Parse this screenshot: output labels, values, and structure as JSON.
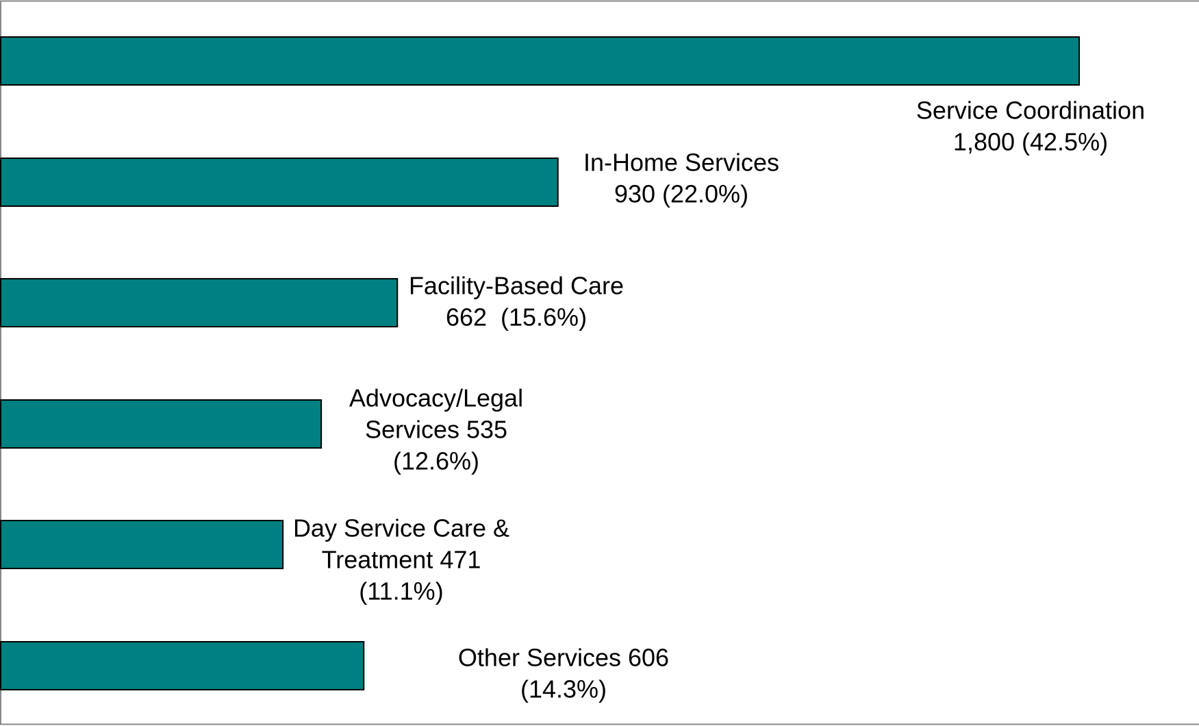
{
  "chart_data": {
    "type": "bar",
    "orientation": "horizontal",
    "color": "#008080",
    "categories": [
      "Service Coordination",
      "In-Home Services",
      "Facility-Based Care",
      "Advocacy/Legal Services",
      "Day Service Care & Treatment",
      "Other Services"
    ],
    "values": [
      1800,
      930,
      662,
      535,
      471,
      606
    ],
    "value_labels": [
      [
        "Service Coordination",
        "1,800 (42.5%)"
      ],
      [
        "In-Home Services",
        "930 (22.0%)"
      ],
      [
        "Facility-Based Care",
        "662  (15.6%)"
      ],
      [
        "Advocacy/Legal",
        "Services 535",
        "(12.6%)"
      ],
      [
        "Day Service Care &",
        "Treatment 471",
        "(11.1%)"
      ],
      [
        "Other Services 606",
        "(14.3%)"
      ]
    ],
    "xlim": [
      0,
      2000
    ]
  }
}
